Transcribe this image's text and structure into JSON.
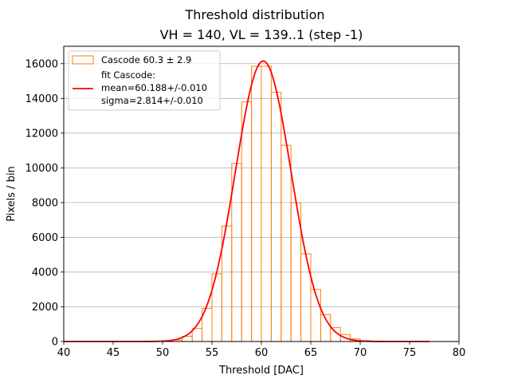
{
  "chart_data": {
    "type": "bar",
    "title": "Threshold distribution",
    "subtitle": "VH = 140, VL = 139..1 (step -1)",
    "xlabel": "Threshold [DAC]",
    "ylabel": "Pixels / bin",
    "xlim": [
      40,
      80
    ],
    "ylim": [
      0,
      17000
    ],
    "x_ticks": [
      40,
      45,
      50,
      55,
      60,
      65,
      70,
      75,
      80
    ],
    "y_ticks": [
      0,
      2000,
      4000,
      6000,
      8000,
      10000,
      12000,
      14000,
      16000
    ],
    "grid": "horizontal",
    "legend_position": "top-left",
    "colors": {
      "histogram": "#ff7f0e",
      "fit": "#ff0000",
      "grid": "#b0b0b0"
    },
    "histogram": {
      "name": "Cascode 60.3 ± 2.9",
      "bin_edges": [
        40,
        41,
        42,
        43,
        44,
        45,
        46,
        47,
        48,
        49,
        50,
        51,
        52,
        53,
        54,
        55,
        56,
        57,
        58,
        59,
        60,
        61,
        62,
        63,
        64,
        65,
        66,
        67,
        68,
        69,
        70,
        71,
        72,
        73,
        74,
        75,
        76,
        77
      ],
      "counts": [
        0,
        0,
        0,
        0,
        0,
        0,
        0,
        0,
        0,
        0,
        20,
        80,
        300,
        750,
        1900,
        3900,
        6650,
        10250,
        13800,
        15850,
        15850,
        14350,
        11300,
        8000,
        5050,
        3000,
        1550,
        800,
        400,
        150,
        50,
        20,
        0,
        0,
        0,
        0,
        0
      ]
    },
    "fit": {
      "legend_lines": [
        "fit Cascode:",
        "mean=60.188+/-0.010",
        "sigma=2.814+/-0.010"
      ],
      "mean": 60.188,
      "sigma": 2.814,
      "amplitude": 16150,
      "x_range": [
        40,
        77
      ]
    }
  }
}
